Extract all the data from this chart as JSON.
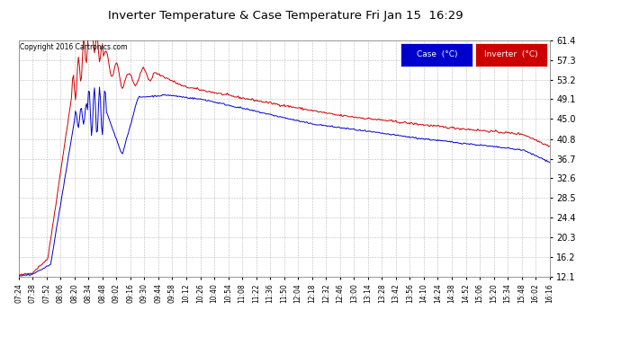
{
  "title": "Inverter Temperature & Case Temperature Fri Jan 15  16:29",
  "copyright": "Copyright 2016 Cartronics.com",
  "background_color": "#ffffff",
  "plot_bg_color": "#ffffff",
  "grid_color": "#bbbbbb",
  "ylim": [
    12.1,
    61.4
  ],
  "yticks": [
    12.1,
    16.2,
    20.3,
    24.4,
    28.5,
    32.6,
    36.7,
    40.8,
    45.0,
    49.1,
    53.2,
    57.3,
    61.4
  ],
  "case_color": "#0000cc",
  "inverter_color": "#cc0000",
  "legend_case_bg": "#0000cc",
  "legend_inverter_bg": "#cc0000",
  "legend_text_case": "Case  (°C)",
  "legend_text_inv": "Inverter  (°C)",
  "x_tick_labels": [
    "07:24",
    "07:38",
    "07:52",
    "08:06",
    "08:20",
    "08:34",
    "08:48",
    "09:02",
    "09:16",
    "09:30",
    "09:44",
    "09:58",
    "10:12",
    "10:26",
    "10:40",
    "10:54",
    "11:08",
    "11:22",
    "11:36",
    "11:50",
    "12:04",
    "12:18",
    "12:32",
    "12:46",
    "13:00",
    "13:14",
    "13:28",
    "13:42",
    "13:56",
    "14:10",
    "14:24",
    "14:38",
    "14:52",
    "15:06",
    "15:20",
    "15:34",
    "15:48",
    "16:02",
    "16:16"
  ]
}
